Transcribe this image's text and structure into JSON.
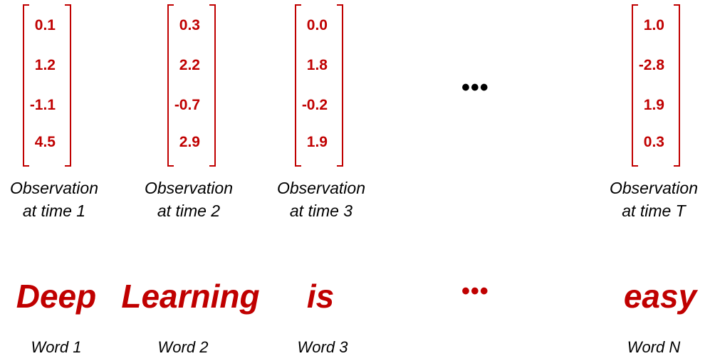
{
  "vectors": [
    {
      "values": [
        "0.1",
        "1.2",
        "-1.1",
        "4.5"
      ],
      "label_line1": "Observation",
      "label_line2": "at time 1"
    },
    {
      "values": [
        "0.3",
        "2.2",
        "-0.7",
        "2.9"
      ],
      "label_line1": "Observation",
      "label_line2": "at time 2"
    },
    {
      "values": [
        "0.0",
        "1.8",
        "-0.2",
        "1.9"
      ],
      "label_line1": "Observation",
      "label_line2": "at time 3"
    },
    {
      "values": [
        "1.0",
        "-2.8",
        "1.9",
        "0.3"
      ],
      "label_line1": "Observation",
      "label_line2": "at time T"
    }
  ],
  "ellipsis_top": "•••",
  "ellipsis_bottom": "•••",
  "words": [
    {
      "text": "Deep",
      "label": "Word 1"
    },
    {
      "text": "Learning",
      "label": "Word 2"
    },
    {
      "text": "is",
      "label": "Word 3"
    },
    {
      "text": "easy",
      "label": "Word N"
    }
  ],
  "colors": {
    "accent": "#c00000",
    "text": "#000000"
  }
}
